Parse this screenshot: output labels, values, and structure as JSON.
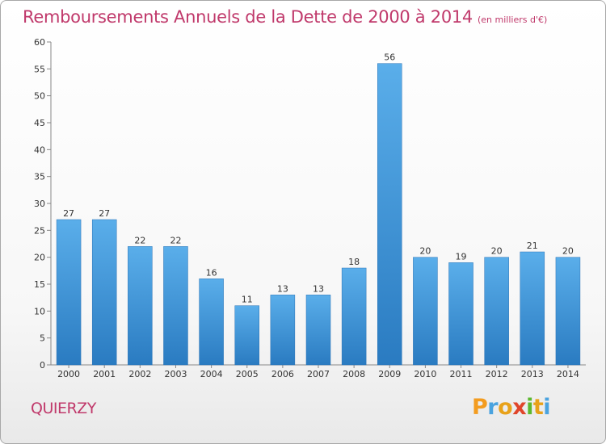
{
  "chart_data": {
    "type": "bar",
    "title": "Remboursements Annuels de la Dette de 2000 à 2014",
    "unit_note": "(en milliers d'€)",
    "categories": [
      "2000",
      "2001",
      "2002",
      "2003",
      "2004",
      "2005",
      "2006",
      "2007",
      "2008",
      "2009",
      "2010",
      "2011",
      "2012",
      "2013",
      "2014"
    ],
    "values": [
      27,
      27,
      22,
      22,
      16,
      11,
      13,
      13,
      18,
      56,
      20,
      19,
      20,
      21,
      20
    ],
    "ylim": [
      0,
      60
    ],
    "yticks": [
      0,
      5,
      10,
      15,
      20,
      25,
      30,
      35,
      40,
      45,
      50,
      55,
      60
    ],
    "grid": false,
    "bar_color": "#2f86cf"
  },
  "commune": "QUIERZY",
  "logo": {
    "text": "Proxiti",
    "letters": [
      {
        "ch": "P",
        "color": "#f39c1f"
      },
      {
        "ch": "r",
        "color": "#4aa3df"
      },
      {
        "ch": "o",
        "color": "#e8a21a"
      },
      {
        "ch": "x",
        "color": "#e0452a"
      },
      {
        "ch": "i",
        "color": "#5cb82e"
      },
      {
        "ch": "t",
        "color": "#e8a21a"
      },
      {
        "ch": "i",
        "color": "#4aa3df"
      }
    ]
  }
}
